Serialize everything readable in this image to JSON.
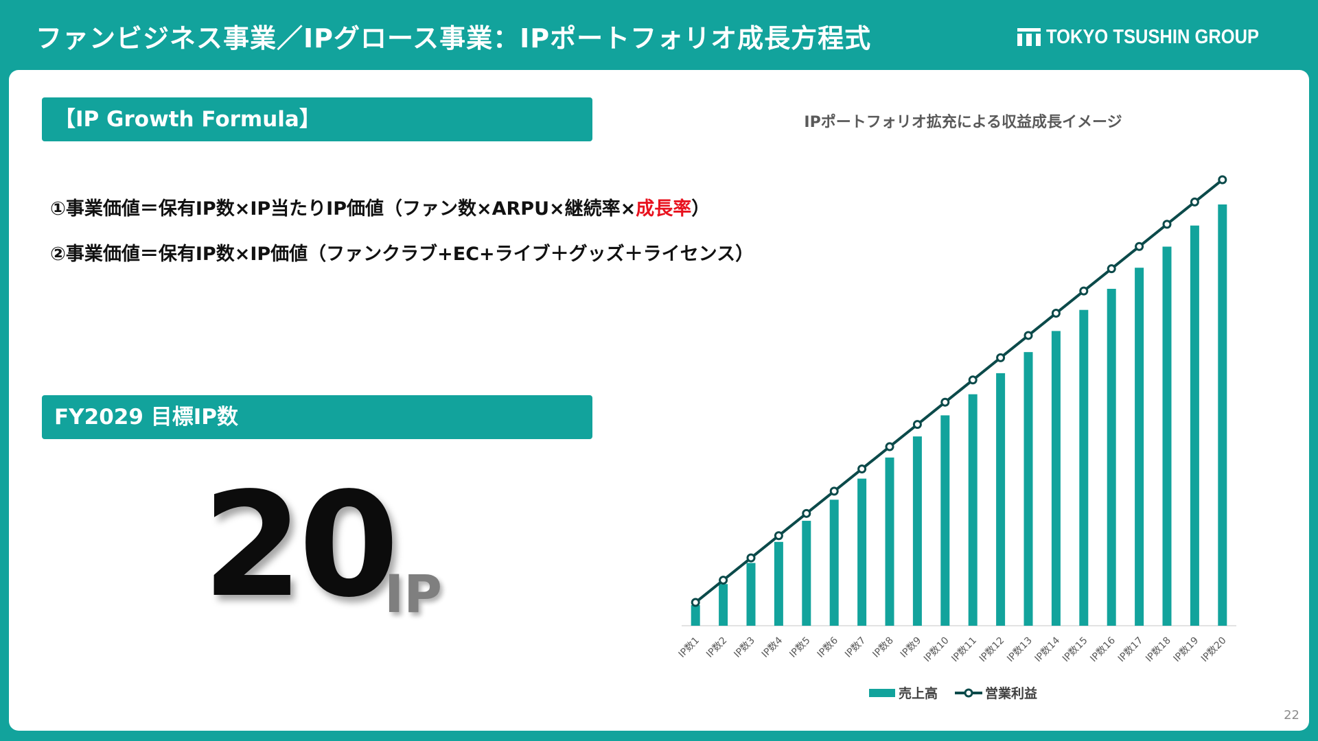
{
  "header": {
    "title": "ファンビジネス事業／IPグロース事業：IPポートフォリオ成長方程式",
    "brand_name": "TOKYO TSUSHIN GROUP",
    "brand_icon": "company-logo-icon"
  },
  "formula_section": {
    "heading": "【IP Growth Formula】",
    "line1_main": "①事業価値＝保有IP数×IP当たりIP価値（ファン数×ARPU×継続率×",
    "line1_accent": "成長率",
    "line1_end": "）",
    "line2": "②事業価値＝保有IP数×IP価値（ファンクラブ+EC+ライブ＋グッズ＋ライセンス）",
    "accent_color": "#e8121e"
  },
  "target_section": {
    "heading": "FY2029 目標IP数",
    "value": "20",
    "unit": "IP"
  },
  "chart_data": {
    "type": "bar",
    "title": "IPポートフォリオ拡充による収益成長イメージ",
    "categories": [
      "IP数1",
      "IP数2",
      "IP数3",
      "IP数4",
      "IP数5",
      "IP数6",
      "IP数7",
      "IP数8",
      "IP数9",
      "IP数10",
      "IP数11",
      "IP数12",
      "IP数13",
      "IP数14",
      "IP数15",
      "IP数16",
      "IP数17",
      "IP数18",
      "IP数19",
      "IP数20"
    ],
    "series": [
      {
        "name": "売上高",
        "kind": "bar",
        "color": "#12a39c",
        "values": [
          1,
          2,
          3,
          4,
          5,
          6,
          7,
          8,
          9,
          10,
          11,
          12,
          13,
          14,
          15,
          16,
          17,
          18,
          19,
          20
        ]
      },
      {
        "name": "営業利益",
        "kind": "line",
        "color": "#0b4a4a",
        "values": [
          1,
          2,
          3,
          4,
          5,
          6,
          7,
          8,
          9,
          10,
          11,
          12,
          13,
          14,
          15,
          16,
          17,
          18,
          19,
          20
        ]
      }
    ],
    "xlabel": "",
    "ylabel": "",
    "y_axis_visible": false,
    "grid": false,
    "legend_position": "bottom"
  },
  "footer": {
    "page_number": "22"
  }
}
